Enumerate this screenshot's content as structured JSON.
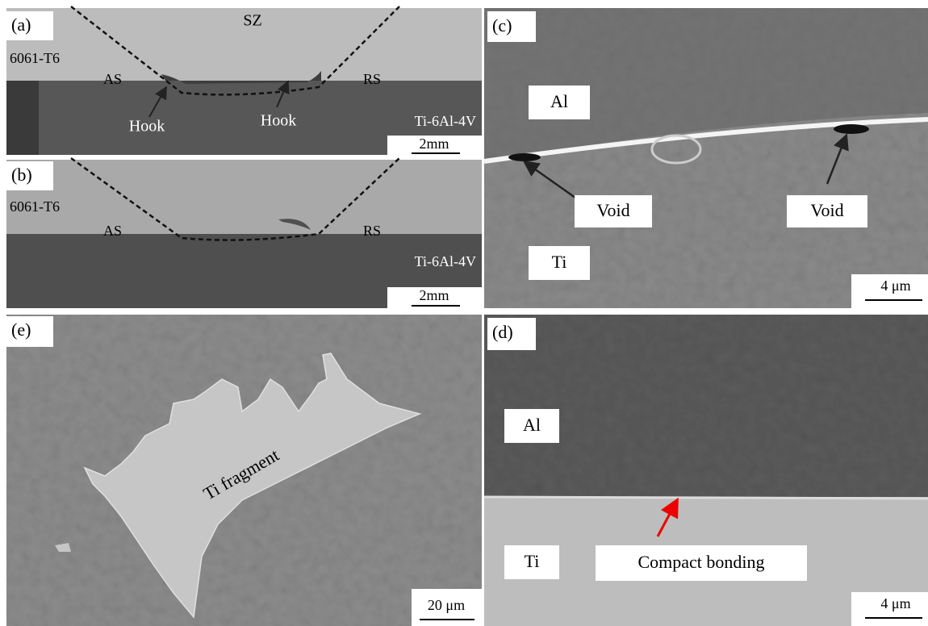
{
  "panels": {
    "a": {
      "label": "(a)",
      "zone": "SZ",
      "top_material": "6061-T6",
      "advancing": "AS",
      "retreating": "RS",
      "hook_left": "Hook",
      "hook_right": "Hook",
      "bottom_material": "Ti-6Al-4V",
      "scale": "2mm"
    },
    "b": {
      "label": "(b)",
      "top_material": "6061-T6",
      "advancing": "AS",
      "retreating": "RS",
      "bottom_material": "Ti-6Al-4V",
      "scale": "2mm"
    },
    "c": {
      "label": "(c)",
      "top_material": "Al",
      "void_left": "Void",
      "void_right": "Void",
      "bottom_material": "Ti",
      "scale": "4 μm"
    },
    "d": {
      "label": "(d)",
      "top_material": "Al",
      "bottom_material": "Ti",
      "annotation": "Compact bonding",
      "scale": "4 μm"
    },
    "e": {
      "label": "(e)",
      "annotation": "Ti fragment",
      "scale": "20 μm"
    }
  }
}
